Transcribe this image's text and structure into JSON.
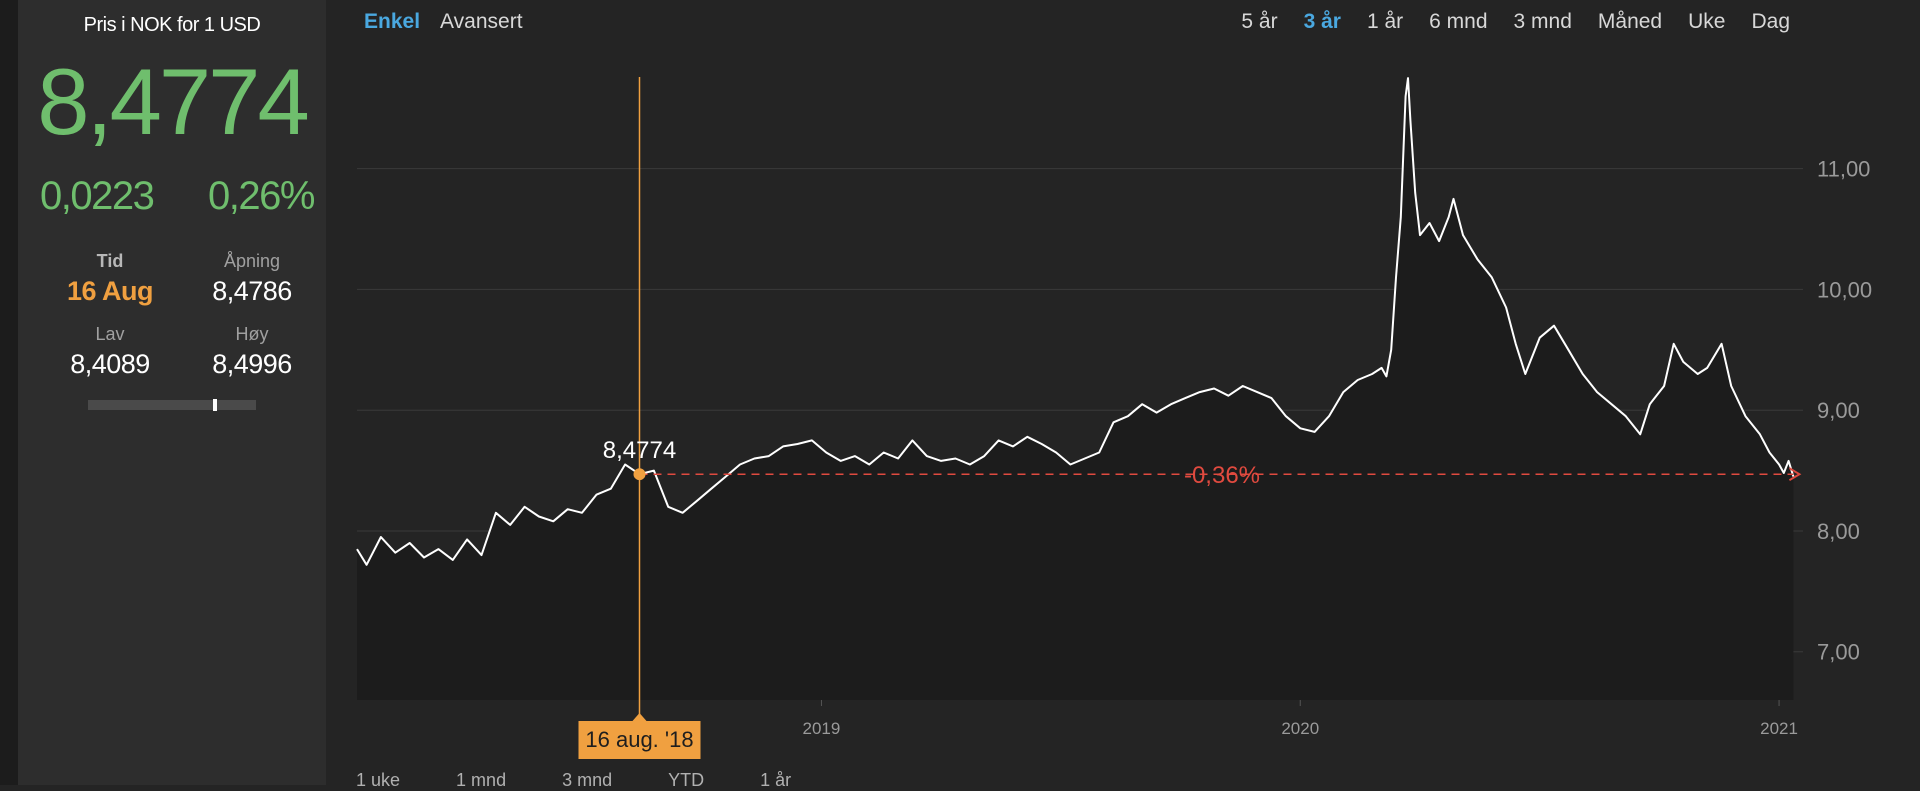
{
  "panel": {
    "title": "Pris i NOK for 1 USD",
    "price": "8,4774",
    "change_abs": "0,0223",
    "change_pct": "0,26%",
    "time_label": "Tid",
    "time_value": "16 Aug",
    "open_label": "Åpning",
    "open_value": "8,4786",
    "low_label": "Lav",
    "low_value": "8,4089",
    "high_label": "Høy",
    "high_value": "8,4996",
    "range_position": 0.76
  },
  "modes": [
    "Enkel",
    "Avansert"
  ],
  "active_mode": "Enkel",
  "periods": [
    "5 år",
    "3 år",
    "1 år",
    "6 mnd",
    "3 mnd",
    "Måned",
    "Uke",
    "Dag"
  ],
  "active_period": "3 år",
  "bottom_periods": [
    "1 uke",
    "1 mnd",
    "3 mnd",
    "YTD",
    "1 år"
  ],
  "colors": {
    "positive": "#6fbe6d",
    "accent": "#f0a040",
    "active_tab": "#4aa8e0",
    "negative": "#e04a3f",
    "line": "#ffffff"
  },
  "chart_data": {
    "type": "line",
    "title": "",
    "xlabel": "",
    "ylabel": "",
    "ylim": [
      6.6,
      11.9
    ],
    "yticks": [
      "11,00",
      "10,00",
      "9,00",
      "8,00",
      "7,00"
    ],
    "ytick_values": [
      11,
      10,
      9,
      8,
      7
    ],
    "xticks": [
      "2019",
      "2020",
      "2021"
    ],
    "xtick_values": [
      2019.0,
      2020.0,
      2021.0
    ],
    "xlim": [
      2018.03,
      2021.05
    ],
    "grid": true,
    "series": [
      {
        "points": [
          [
            2018.03,
            7.85
          ],
          [
            2018.05,
            7.72
          ],
          [
            2018.08,
            7.95
          ],
          [
            2018.11,
            7.82
          ],
          [
            2018.14,
            7.9
          ],
          [
            2018.17,
            7.78
          ],
          [
            2018.2,
            7.85
          ],
          [
            2018.23,
            7.76
          ],
          [
            2018.26,
            7.93
          ],
          [
            2018.29,
            7.8
          ],
          [
            2018.32,
            8.15
          ],
          [
            2018.35,
            8.05
          ],
          [
            2018.38,
            8.2
          ],
          [
            2018.41,
            8.12
          ],
          [
            2018.44,
            8.08
          ],
          [
            2018.47,
            8.18
          ],
          [
            2018.5,
            8.15
          ],
          [
            2018.53,
            8.3
          ],
          [
            2018.56,
            8.35
          ],
          [
            2018.59,
            8.55
          ],
          [
            2018.62,
            8.47
          ],
          [
            2018.65,
            8.5
          ],
          [
            2018.68,
            8.2
          ],
          [
            2018.71,
            8.15
          ],
          [
            2018.74,
            8.25
          ],
          [
            2018.77,
            8.35
          ],
          [
            2018.8,
            8.45
          ],
          [
            2018.83,
            8.55
          ],
          [
            2018.86,
            8.6
          ],
          [
            2018.89,
            8.62
          ],
          [
            2018.92,
            8.7
          ],
          [
            2018.95,
            8.72
          ],
          [
            2018.98,
            8.75
          ],
          [
            2019.01,
            8.65
          ],
          [
            2019.04,
            8.58
          ],
          [
            2019.07,
            8.62
          ],
          [
            2019.1,
            8.55
          ],
          [
            2019.13,
            8.65
          ],
          [
            2019.16,
            8.6
          ],
          [
            2019.19,
            8.75
          ],
          [
            2019.22,
            8.62
          ],
          [
            2019.25,
            8.58
          ],
          [
            2019.28,
            8.6
          ],
          [
            2019.31,
            8.55
          ],
          [
            2019.34,
            8.62
          ],
          [
            2019.37,
            8.75
          ],
          [
            2019.4,
            8.7
          ],
          [
            2019.43,
            8.78
          ],
          [
            2019.46,
            8.72
          ],
          [
            2019.49,
            8.65
          ],
          [
            2019.52,
            8.55
          ],
          [
            2019.55,
            8.6
          ],
          [
            2019.58,
            8.65
          ],
          [
            2019.61,
            8.9
          ],
          [
            2019.64,
            8.95
          ],
          [
            2019.67,
            9.05
          ],
          [
            2019.7,
            8.98
          ],
          [
            2019.73,
            9.05
          ],
          [
            2019.76,
            9.1
          ],
          [
            2019.79,
            9.15
          ],
          [
            2019.82,
            9.18
          ],
          [
            2019.85,
            9.12
          ],
          [
            2019.88,
            9.2
          ],
          [
            2019.91,
            9.15
          ],
          [
            2019.94,
            9.1
          ],
          [
            2019.97,
            8.95
          ],
          [
            2020.0,
            8.85
          ],
          [
            2020.03,
            8.82
          ],
          [
            2020.06,
            8.95
          ],
          [
            2020.09,
            9.15
          ],
          [
            2020.12,
            9.25
          ],
          [
            2020.15,
            9.3
          ],
          [
            2020.17,
            9.35
          ],
          [
            2020.18,
            9.28
          ],
          [
            2020.19,
            9.5
          ],
          [
            2020.2,
            10.1
          ],
          [
            2020.21,
            10.6
          ],
          [
            2020.22,
            11.6
          ],
          [
            2020.225,
            11.75
          ],
          [
            2020.23,
            11.4
          ],
          [
            2020.24,
            10.8
          ],
          [
            2020.25,
            10.45
          ],
          [
            2020.27,
            10.55
          ],
          [
            2020.29,
            10.4
          ],
          [
            2020.31,
            10.6
          ],
          [
            2020.32,
            10.75
          ],
          [
            2020.34,
            10.45
          ],
          [
            2020.37,
            10.25
          ],
          [
            2020.4,
            10.1
          ],
          [
            2020.43,
            9.85
          ],
          [
            2020.45,
            9.55
          ],
          [
            2020.47,
            9.3
          ],
          [
            2020.5,
            9.6
          ],
          [
            2020.53,
            9.7
          ],
          [
            2020.56,
            9.5
          ],
          [
            2020.59,
            9.3
          ],
          [
            2020.62,
            9.15
          ],
          [
            2020.65,
            9.05
          ],
          [
            2020.68,
            8.95
          ],
          [
            2020.71,
            8.8
          ],
          [
            2020.73,
            9.05
          ],
          [
            2020.76,
            9.2
          ],
          [
            2020.78,
            9.55
          ],
          [
            2020.8,
            9.4
          ],
          [
            2020.83,
            9.3
          ],
          [
            2020.85,
            9.35
          ],
          [
            2020.88,
            9.55
          ],
          [
            2020.9,
            9.2
          ],
          [
            2020.93,
            8.95
          ],
          [
            2020.96,
            8.8
          ],
          [
            2020.98,
            8.65
          ],
          [
            2021.0,
            8.55
          ],
          [
            2021.01,
            8.48
          ],
          [
            2021.02,
            8.58
          ],
          [
            2021.03,
            8.45
          ]
        ]
      }
    ],
    "selected": {
      "x": 2018.62,
      "value": "8,4774",
      "date_label": "16 aug. '18"
    },
    "reference_value": 8.47,
    "reference_label": "-0,36%"
  }
}
